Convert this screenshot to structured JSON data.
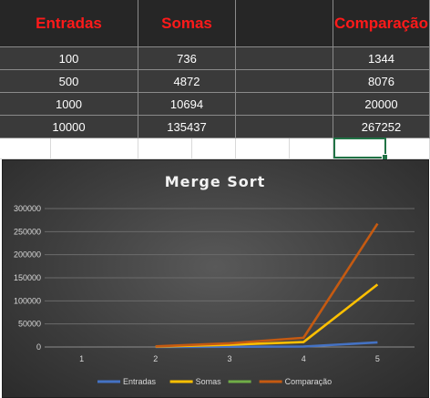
{
  "sheet": {
    "headers": [
      "Entradas",
      "Somas",
      "",
      "Comparação"
    ],
    "rows": [
      [
        "100",
        "736",
        "",
        "1344"
      ],
      [
        "500",
        "4872",
        "",
        "8076"
      ],
      [
        "1000",
        "10694",
        "",
        "20000"
      ],
      [
        "10000",
        "135437",
        "",
        "267252"
      ]
    ]
  },
  "chart_data": {
    "type": "line",
    "title": "Merge Sort",
    "categories": [
      "1",
      "2",
      "3",
      "4",
      "5"
    ],
    "ylim": [
      0,
      300000
    ],
    "yticks": [
      0,
      50000,
      100000,
      150000,
      200000,
      250000,
      300000
    ],
    "grid": true,
    "legend_position": "bottom",
    "series": [
      {
        "name": "Entradas",
        "color": "#4472c4",
        "values": [
          null,
          100,
          500,
          1000,
          10000
        ]
      },
      {
        "name": "Somas",
        "color": "#ffc000",
        "values": [
          null,
          736,
          4872,
          10694,
          135437
        ]
      },
      {
        "name": "",
        "color": "#70ad47",
        "values": [
          null,
          null,
          null,
          null,
          null
        ]
      },
      {
        "name": "Comparação",
        "color": "#c55a11",
        "values": [
          null,
          1344,
          8076,
          20000,
          267252
        ]
      }
    ]
  }
}
